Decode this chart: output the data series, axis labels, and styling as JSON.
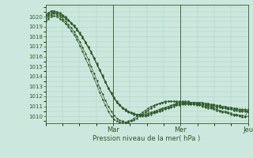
{
  "bg_color": "#cce8de",
  "grid_color": "#aacfbf",
  "line_color": "#2d5a27",
  "xlabel": "Pression niveau de la mer( hPa )",
  "ylim": [
    1009.3,
    1021.2
  ],
  "yticks": [
    1010,
    1011,
    1012,
    1013,
    1014,
    1015,
    1016,
    1017,
    1018,
    1019,
    1020
  ],
  "xlim": [
    0,
    3
  ],
  "xtick_positions": [
    1,
    2,
    3
  ],
  "xtick_labels": [
    "Mar",
    "Mer",
    "Jeu"
  ],
  "vlines": [
    1,
    2,
    3
  ],
  "lines": [
    [
      1020.0,
      1020.2,
      1020.3,
      1020.4,
      1020.3,
      1020.2,
      1020.0,
      1019.8,
      1019.6,
      1019.3,
      1019.0,
      1018.7,
      1018.3,
      1017.9,
      1017.4,
      1016.9,
      1016.4,
      1015.8,
      1015.2,
      1014.6,
      1014.0,
      1013.4,
      1012.8,
      1012.3,
      1011.8,
      1011.4,
      1011.1,
      1010.8,
      1010.6,
      1010.4,
      1010.3,
      1010.2,
      1010.1,
      1010.1,
      1010.0,
      1010.0,
      1010.1,
      1010.2,
      1010.3,
      1010.4,
      1010.5,
      1010.6,
      1010.7,
      1010.8,
      1010.9,
      1011.0,
      1011.1,
      1011.1,
      1011.2,
      1011.2,
      1011.2,
      1011.2,
      1011.2,
      1011.2,
      1011.2,
      1011.2,
      1011.1,
      1011.1,
      1011.0,
      1011.0,
      1010.9,
      1010.9,
      1010.8,
      1010.8,
      1010.7,
      1010.7,
      1010.6,
      1010.6,
      1010.5,
      1010.5,
      1010.5,
      1010.4
    ],
    [
      1020.1,
      1020.3,
      1020.5,
      1020.5,
      1020.4,
      1020.3,
      1020.1,
      1019.9,
      1019.7,
      1019.4,
      1019.1,
      1018.7,
      1018.3,
      1017.9,
      1017.4,
      1016.9,
      1016.4,
      1015.8,
      1015.2,
      1014.6,
      1014.0,
      1013.4,
      1012.8,
      1012.3,
      1011.8,
      1011.4,
      1011.1,
      1010.8,
      1010.6,
      1010.5,
      1010.3,
      1010.2,
      1010.2,
      1010.1,
      1010.1,
      1010.1,
      1010.2,
      1010.3,
      1010.4,
      1010.5,
      1010.6,
      1010.7,
      1010.8,
      1010.9,
      1011.0,
      1011.1,
      1011.2,
      1011.2,
      1011.3,
      1011.3,
      1011.3,
      1011.3,
      1011.3,
      1011.3,
      1011.3,
      1011.3,
      1011.2,
      1011.2,
      1011.1,
      1011.1,
      1011.0,
      1011.0,
      1010.9,
      1010.9,
      1010.8,
      1010.8,
      1010.7,
      1010.7,
      1010.6,
      1010.6,
      1010.6,
      1010.5
    ],
    [
      1020.2,
      1020.4,
      1020.6,
      1020.6,
      1020.5,
      1020.4,
      1020.2,
      1020.0,
      1019.7,
      1019.4,
      1019.1,
      1018.8,
      1018.4,
      1018.0,
      1017.5,
      1017.0,
      1016.5,
      1015.9,
      1015.3,
      1014.7,
      1014.1,
      1013.5,
      1012.9,
      1012.4,
      1011.9,
      1011.5,
      1011.2,
      1010.9,
      1010.7,
      1010.5,
      1010.4,
      1010.3,
      1010.2,
      1010.2,
      1010.2,
      1010.2,
      1010.3,
      1010.4,
      1010.5,
      1010.6,
      1010.7,
      1010.8,
      1010.9,
      1011.0,
      1011.1,
      1011.2,
      1011.3,
      1011.3,
      1011.4,
      1011.4,
      1011.4,
      1011.4,
      1011.4,
      1011.4,
      1011.4,
      1011.4,
      1011.3,
      1011.3,
      1011.2,
      1011.2,
      1011.1,
      1011.1,
      1011.0,
      1011.0,
      1010.9,
      1010.9,
      1010.8,
      1010.8,
      1010.7,
      1010.7,
      1010.7,
      1010.6
    ],
    [
      1019.7,
      1020.0,
      1020.2,
      1020.3,
      1020.2,
      1020.0,
      1019.8,
      1019.5,
      1019.2,
      1018.9,
      1018.5,
      1018.0,
      1017.5,
      1016.9,
      1016.3,
      1015.7,
      1015.0,
      1014.3,
      1013.6,
      1012.9,
      1012.2,
      1011.6,
      1011.0,
      1010.5,
      1010.1,
      1009.8,
      1009.6,
      1009.5,
      1009.4,
      1009.4,
      1009.5,
      1009.6,
      1009.8,
      1010.0,
      1010.2,
      1010.4,
      1010.6,
      1010.8,
      1011.0,
      1011.2,
      1011.3,
      1011.4,
      1011.5,
      1011.5,
      1011.5,
      1011.5,
      1011.5,
      1011.5,
      1011.5,
      1011.5,
      1011.5,
      1011.4,
      1011.4,
      1011.3,
      1011.2,
      1011.1,
      1011.0,
      1011.0,
      1010.9,
      1010.8,
      1010.7,
      1010.6,
      1010.5,
      1010.5,
      1010.4,
      1010.3,
      1010.2,
      1010.2,
      1010.1,
      1010.1,
      1010.0,
      1010.0
    ],
    [
      1019.5,
      1019.8,
      1020.0,
      1020.1,
      1020.0,
      1019.8,
      1019.6,
      1019.3,
      1019.0,
      1018.6,
      1018.2,
      1017.7,
      1017.1,
      1016.5,
      1015.8,
      1015.2,
      1014.5,
      1013.8,
      1013.1,
      1012.4,
      1011.7,
      1011.1,
      1010.5,
      1010.0,
      1009.7,
      1009.5,
      1009.4,
      1009.4,
      1009.4,
      1009.5,
      1009.6,
      1009.8,
      1010.0,
      1010.2,
      1010.4,
      1010.6,
      1010.8,
      1011.0,
      1011.1,
      1011.2,
      1011.3,
      1011.4,
      1011.4,
      1011.5,
      1011.5,
      1011.5,
      1011.4,
      1011.4,
      1011.4,
      1011.3,
      1011.3,
      1011.2,
      1011.2,
      1011.1,
      1011.1,
      1011.0,
      1010.9,
      1010.8,
      1010.8,
      1010.7,
      1010.6,
      1010.5,
      1010.4,
      1010.4,
      1010.3,
      1010.2,
      1010.1,
      1010.1,
      1010.0,
      1009.9,
      1009.9,
      1010.7
    ]
  ]
}
